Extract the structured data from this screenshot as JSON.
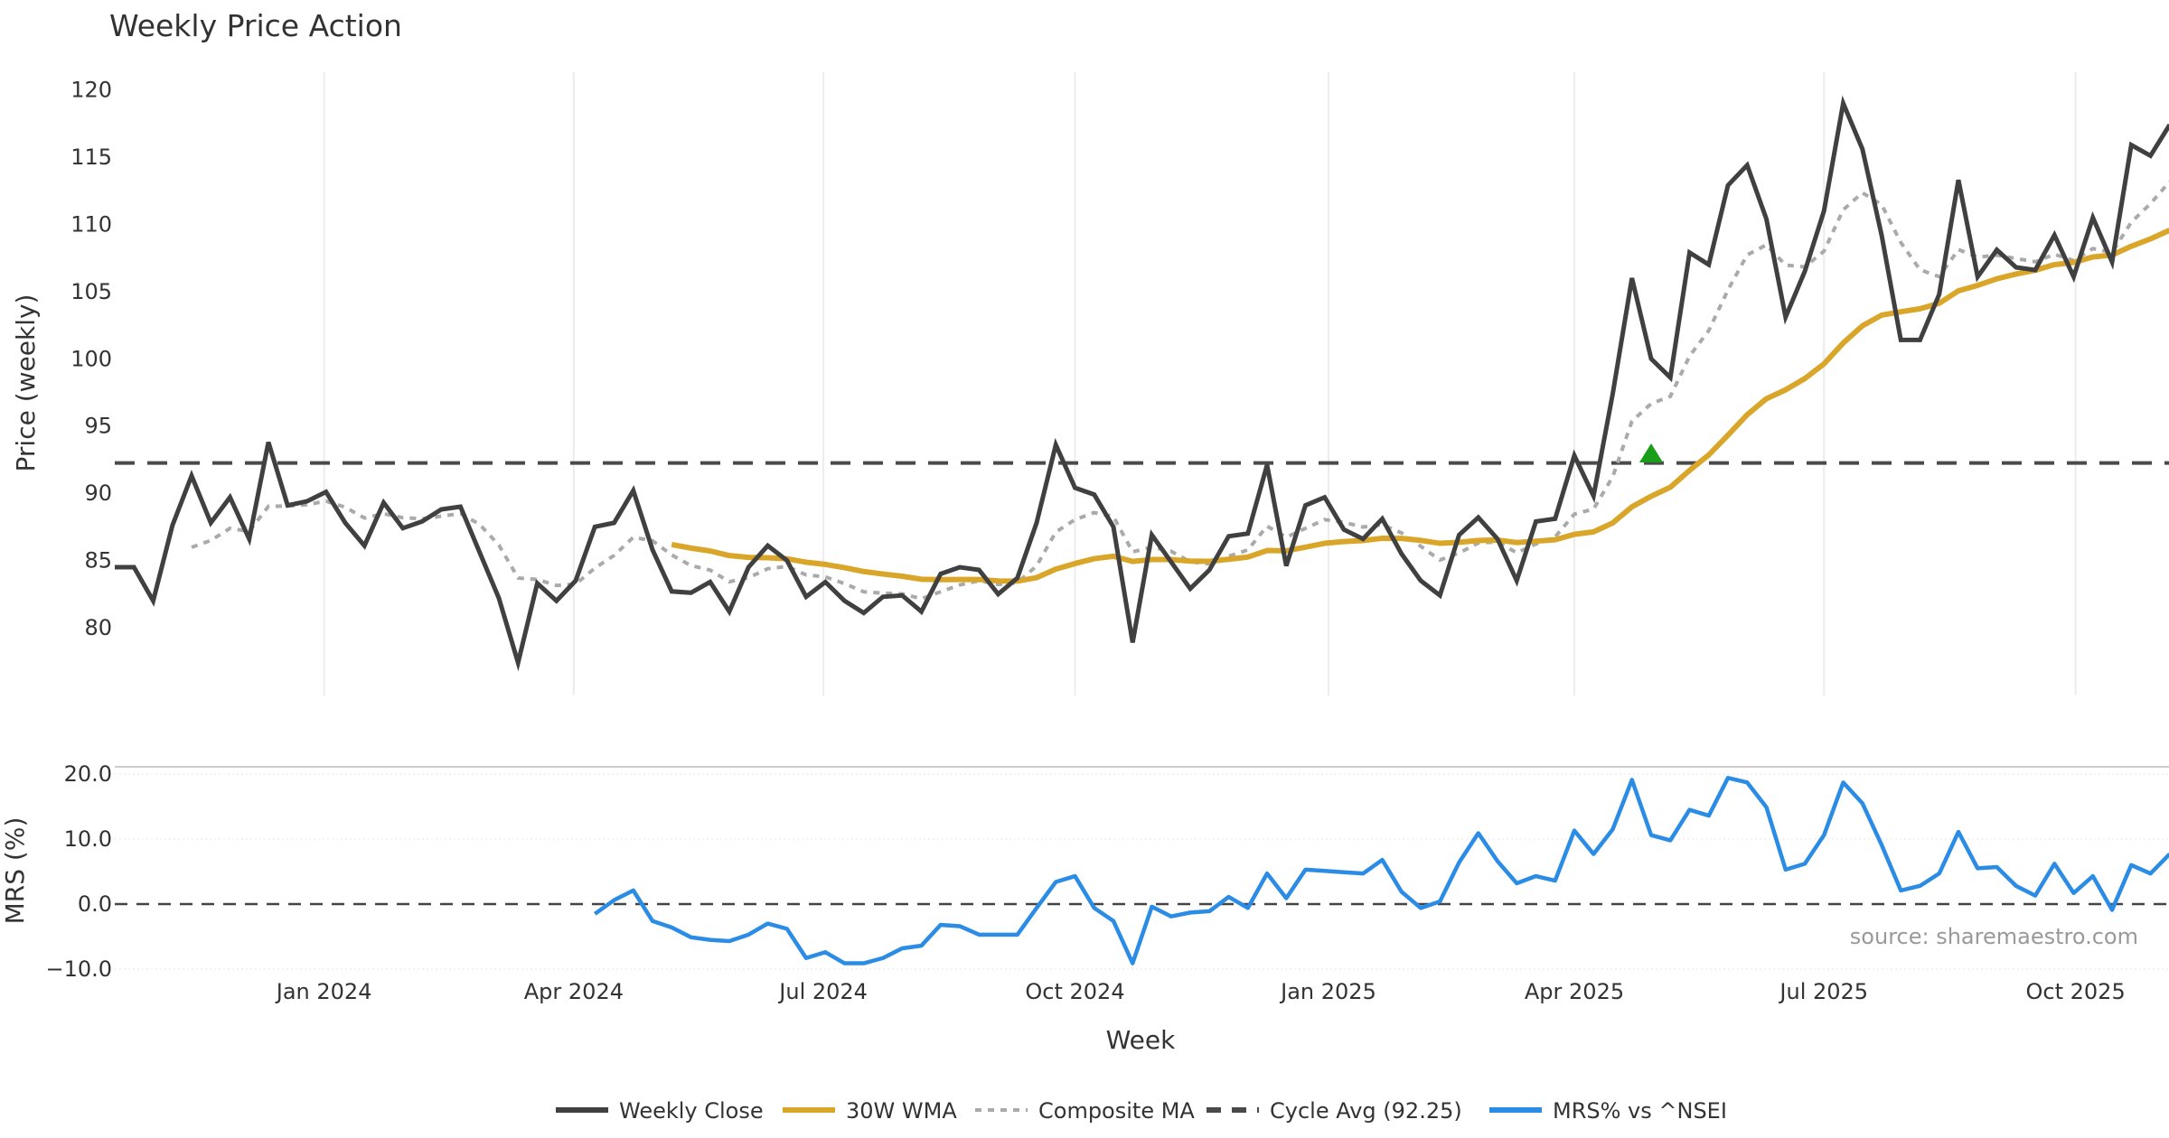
{
  "chart_data": {
    "type": "line",
    "title": "Weekly Price Action",
    "xlabel": "Week",
    "ylabel": "Price (weekly)",
    "ylim": [
      75,
      121
    ],
    "yticks": [
      80,
      85,
      90,
      95,
      100,
      105,
      110,
      115,
      120
    ],
    "x_unit": "week index",
    "xticks": [
      {
        "label": "Jan 2024",
        "week": 10.9
      },
      {
        "label": "Apr 2024",
        "week": 23.9
      },
      {
        "label": "Jul 2024",
        "week": 36.9
      },
      {
        "label": "Oct 2024",
        "week": 50.0
      },
      {
        "label": "Jan 2025",
        "week": 63.2
      },
      {
        "label": "Apr 2025",
        "week": 76.0
      },
      {
        "label": "Jul 2025",
        "week": 89.0
      },
      {
        "label": "Oct 2025",
        "week": 102.1
      }
    ],
    "weekly_close": [
      84.5,
      84.5,
      82,
      87.6,
      91.3,
      87.8,
      89.7,
      86.6,
      93.8,
      89.1,
      89.4,
      90.1,
      87.8,
      86.1,
      89.3,
      87.4,
      87.9,
      88.8,
      89.0,
      85.6,
      82.2,
      77.4,
      83.3,
      82,
      83.5,
      87.5,
      87.8,
      90.2,
      85.8,
      82.7,
      82.6,
      83.4,
      81.2,
      84.5,
      86.1,
      85.0,
      82.3,
      83.4,
      82,
      81.1,
      82.3,
      82.4,
      81.2,
      84.0,
      84.5,
      84.3,
      82.5,
      83.7,
      87.8,
      93.6,
      90.4,
      89.9,
      87.5,
      78.9,
      86.9,
      84.9,
      82.9,
      84.3,
      86.8,
      87.0,
      92.1,
      84.6,
      89.1,
      89.7,
      87.3,
      86.6,
      88.1,
      85.5,
      83.5,
      82.4,
      86.9,
      88.2,
      86.6,
      83.5,
      87.9,
      88.1,
      92.8,
      89.8,
      97.4,
      106.0,
      100.0,
      98.6,
      107.9,
      107.0,
      112.9,
      114.4,
      110.4,
      103.1,
      106.5,
      111.0,
      119.0,
      115.6,
      109.2,
      101.4,
      101.4,
      104.8,
      113.3,
      106.1,
      108.1,
      106.8,
      106.6,
      109.2,
      106.1,
      110.5,
      107.2,
      115.9,
      115.1,
      117.4
    ],
    "wma_period": 30,
    "composite_ma_start": 4,
    "cycle_avg": 92.25,
    "signal": {
      "type": "buy-triangle",
      "week": 80,
      "value": 92.9,
      "color": "#1a9e1a"
    },
    "mrs": {
      "ylabel": "MRS (%)",
      "ylim": [
        -11,
        21
      ],
      "yticks": [
        {
          "v": 20,
          "label": "20.0"
        },
        {
          "v": 10,
          "label": "10.0"
        },
        {
          "v": 0,
          "label": "0.0"
        },
        {
          "v": -10,
          "label": "−10.0"
        }
      ],
      "start_week": 25,
      "values": [
        -1.5,
        0.6,
        2.1,
        -2.6,
        -3.6,
        -5.1,
        -5.5,
        -5.7,
        -4.7,
        -3.0,
        -3.8,
        -8.3,
        -7.4,
        -9.1,
        -9.1,
        -8.3,
        -6.8,
        -6.4,
        -3.2,
        -3.4,
        -4.7,
        -4.7,
        -4.7,
        -0.6,
        3.4,
        4.3,
        -0.6,
        -2.6,
        -9.1,
        -0.4,
        -1.9,
        -1.3,
        -1.1,
        1.1,
        -0.6,
        4.7,
        0.9,
        5.3,
        5.1,
        4.9,
        4.7,
        6.8,
        1.9,
        -0.6,
        0.4,
        6.4,
        10.9,
        6.6,
        3.2,
        4.3,
        3.6,
        11.3,
        7.7,
        11.5,
        19.1,
        10.6,
        9.8,
        14.5,
        13.6,
        19.4,
        18.7,
        14.9,
        5.3,
        6.2,
        10.6,
        18.7,
        15.5,
        9.1,
        2.1,
        2.8,
        4.7,
        11.1,
        5.5,
        5.7,
        2.8,
        1.3,
        6.2,
        1.7,
        4.3,
        -0.9,
        6.0,
        4.7,
        7.7
      ]
    },
    "legend": [
      {
        "label": "Weekly Close",
        "color": "#404040",
        "style": "solid"
      },
      {
        "label": "30W WMA",
        "color": "#d9a62a",
        "style": "solid"
      },
      {
        "label": "Composite MA",
        "color": "#aaaaaa",
        "style": "dotted"
      },
      {
        "label": "Cycle Avg (92.25)",
        "color": "#4a4a4a",
        "style": "dashed"
      },
      {
        "label": "MRS% vs ^NSEI",
        "color": "#2b8ce6",
        "style": "solid"
      }
    ],
    "legend_position": "bottom-center",
    "source": "source: sharemaestro.com"
  }
}
